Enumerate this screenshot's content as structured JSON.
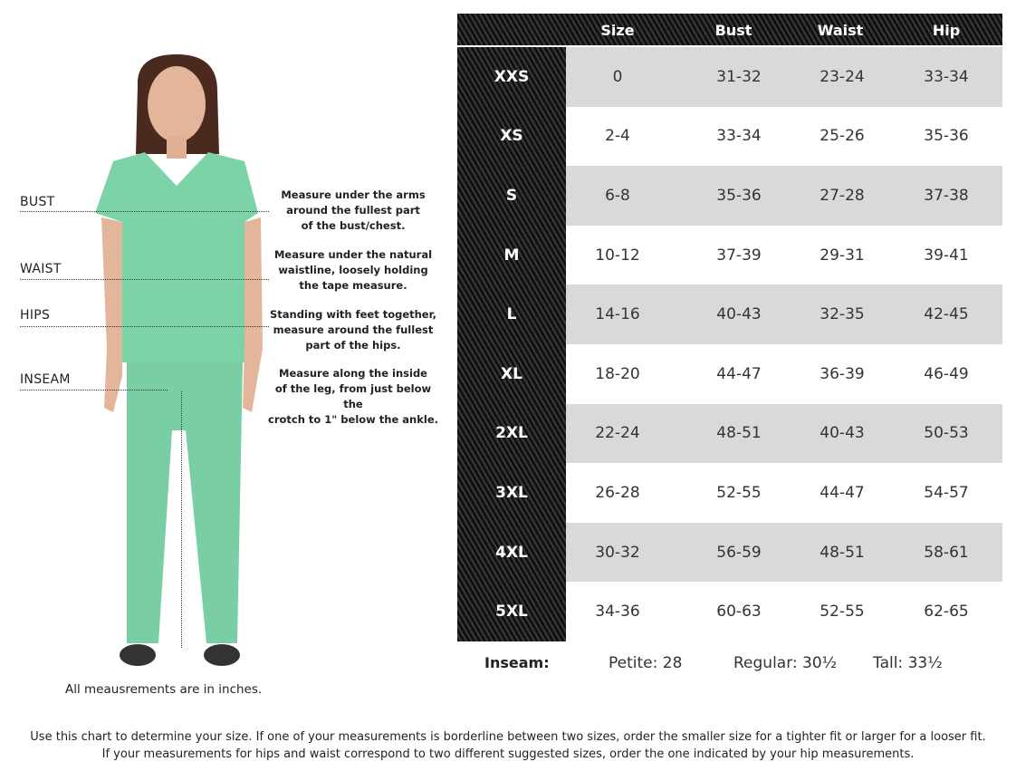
{
  "figure": {
    "labels": [
      "BUST",
      "WAIST",
      "HIPS",
      "INSEAM"
    ],
    "instructions": [
      [
        "Measure under the arms",
        "around the fullest part",
        "of the bust/chest."
      ],
      [
        "Measure under the natural",
        "waistline, loosely holding",
        "the tape measure."
      ],
      [
        "Standing with feet together,",
        "measure around the fullest",
        "part of the hips."
      ],
      [
        "Measure along the inside",
        "of the leg, from just below the",
        "crotch to 1\" below the ankle."
      ]
    ],
    "note": "All meausrements are in inches.",
    "scrub_color": "#7dd3a8"
  },
  "table": {
    "headers": [
      "Size",
      "Bust",
      "Waist",
      "Hip"
    ],
    "rows": [
      {
        "label": "XXS",
        "size": "0",
        "bust": "31-32",
        "waist": "23-24",
        "hip": "33-34"
      },
      {
        "label": "XS",
        "size": "2-4",
        "bust": "33-34",
        "waist": "25-26",
        "hip": "35-36"
      },
      {
        "label": "S",
        "size": "6-8",
        "bust": "35-36",
        "waist": "27-28",
        "hip": "37-38"
      },
      {
        "label": "M",
        "size": "10-12",
        "bust": "37-39",
        "waist": "29-31",
        "hip": "39-41"
      },
      {
        "label": "L",
        "size": "14-16",
        "bust": "40-43",
        "waist": "32-35",
        "hip": "42-45"
      },
      {
        "label": "XL",
        "size": "18-20",
        "bust": "44-47",
        "waist": "36-39",
        "hip": "46-49"
      },
      {
        "label": "2XL",
        "size": "22-24",
        "bust": "48-51",
        "waist": "40-43",
        "hip": "50-53"
      },
      {
        "label": "3XL",
        "size": "26-28",
        "bust": "52-55",
        "waist": "44-47",
        "hip": "54-57"
      },
      {
        "label": "4XL",
        "size": "30-32",
        "bust": "56-59",
        "waist": "48-51",
        "hip": "58-61"
      },
      {
        "label": "5XL",
        "size": "34-36",
        "bust": "60-63",
        "waist": "52-55",
        "hip": "62-65"
      }
    ],
    "inseam": {
      "label": "Inseam:",
      "petite": "Petite: 28",
      "regular": "Regular: 30½",
      "tall": "Tall: 33½"
    }
  },
  "footer": [
    "Use this chart to determine your size. If one of your measurements is borderline between two sizes, order the smaller size for a tighter fit or larger for a looser fit.",
    "If your measurements for hips and waist correspond to two different suggested sizes, order the one indicated by your hip measurements."
  ]
}
